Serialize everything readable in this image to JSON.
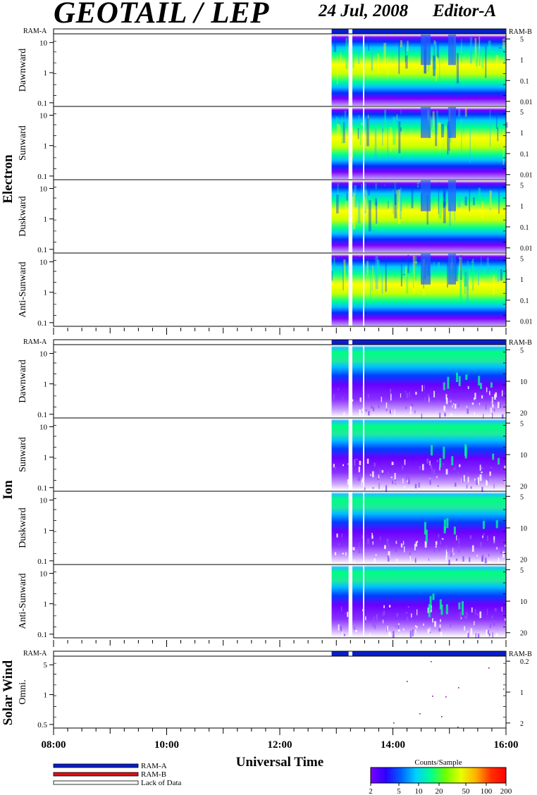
{
  "header": {
    "title": "GEOTAIL / LEP",
    "date": "24 Jul, 2008",
    "editor": "Editor-A"
  },
  "colors": {
    "ram_a": "#0a1fc8",
    "ram_b": "#e01010",
    "lack": "#ffffff",
    "colorbar": [
      "#7b00ff",
      "#2a00ff",
      "#0060ff",
      "#00d0ff",
      "#00ff90",
      "#70ff00",
      "#e8ff00",
      "#ffb000",
      "#ff3000",
      "#ff0000"
    ]
  },
  "legend": {
    "items": [
      "RAM-A",
      "RAM-B",
      "Lack of Data"
    ]
  },
  "colorbar": {
    "title": "Counts/Sample",
    "ticks": [
      "2",
      "5",
      "10",
      "20",
      "50",
      "100",
      "200"
    ]
  },
  "chart_data": {
    "type": "heatmap",
    "xlabel": "Universal Time",
    "x_ticks": [
      "08:00",
      "10:00",
      "12:00",
      "14:00",
      "16:00"
    ],
    "x_range": [
      "08:00",
      "16:00"
    ],
    "data_start": "12:55",
    "data_gap": [
      "13:13",
      "13:17"
    ],
    "mode_bar": {
      "left_label": "RAM-A",
      "right_label": "RAM-B"
    },
    "groups": [
      {
        "name": "Electron",
        "left_ticks": [
          "0.1",
          "1",
          "10"
        ],
        "right_ticks": [
          "5",
          "1",
          "0.1",
          "0.01"
        ],
        "panels": [
          {
            "name": "Dawnward"
          },
          {
            "name": "Sunward"
          },
          {
            "name": "Duskward"
          },
          {
            "name": "Anti-Sunward"
          }
        ]
      },
      {
        "name": "Ion",
        "left_ticks": [
          "0.1",
          "1",
          "10"
        ],
        "right_ticks": [
          "5",
          "10",
          "20"
        ],
        "panels": [
          {
            "name": "Dawnward"
          },
          {
            "name": "Sunward"
          },
          {
            "name": "Duskward"
          },
          {
            "name": "Anti-Sunward"
          }
        ]
      },
      {
        "name": "Solar Wind",
        "left_ticks": [
          "0.5",
          "1",
          "5"
        ],
        "right_ticks": [
          "0.2",
          "1",
          "2"
        ],
        "panels": [
          {
            "name": "Omni."
          }
        ]
      }
    ]
  }
}
